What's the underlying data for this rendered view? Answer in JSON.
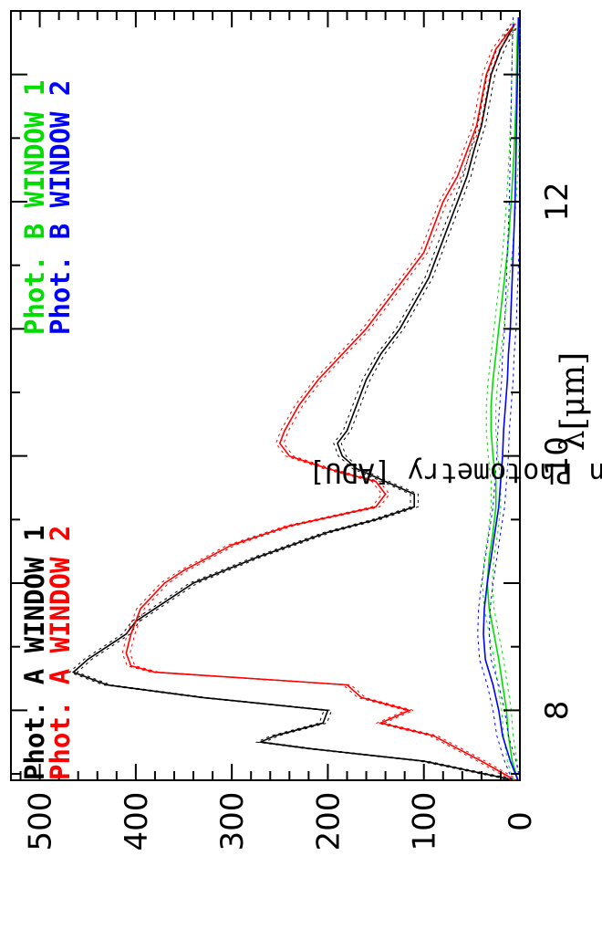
{
  "chart_data": {
    "type": "line",
    "xlabel": "λ[μm]",
    "ylabel": "Mean Photometry [ADU]",
    "xlim": [
      7.45,
      13.5
    ],
    "ylim": [
      0,
      530
    ],
    "x_ticks": [
      8,
      10,
      12
    ],
    "y_ticks": [
      0,
      100,
      200,
      300,
      400,
      500
    ],
    "grid": false,
    "legend_position": "top",
    "legend": [
      {
        "prefix": "Phot. A",
        "window": "WINDOW 1",
        "color": "#000000"
      },
      {
        "prefix": "Phot. A",
        "window": "WINDOW 2",
        "color": "#ff0000"
      },
      {
        "prefix": "Phot. B",
        "window": "WINDOW 1",
        "color": "#00dd00"
      },
      {
        "prefix": "Phot. B",
        "window": "WINDOW 2",
        "color": "#0000ff"
      }
    ],
    "series": [
      {
        "color": "#000000",
        "error_band": 4,
        "x": [
          7.45,
          7.6,
          7.7,
          7.75,
          7.8,
          7.9,
          8.0,
          8.1,
          8.2,
          8.3,
          8.4,
          8.5,
          8.6,
          8.7,
          8.8,
          9.0,
          9.2,
          9.4,
          9.5,
          9.6,
          9.7,
          9.8,
          9.9,
          10.0,
          10.1,
          10.2,
          10.4,
          10.6,
          10.8,
          11.0,
          11.2,
          11.4,
          11.6,
          11.8,
          12.0,
          12.2,
          12.4,
          12.6,
          12.8,
          13.0,
          13.2,
          13.4
        ],
        "y": [
          5,
          100,
          220,
          270,
          255,
          205,
          200,
          330,
          430,
          465,
          450,
          430,
          410,
          400,
          380,
          340,
          275,
          200,
          150,
          110,
          110,
          140,
          170,
          185,
          190,
          180,
          170,
          160,
          145,
          125,
          110,
          95,
          85,
          75,
          65,
          55,
          48,
          40,
          35,
          30,
          20,
          5
        ]
      },
      {
        "color": "#ff0000",
        "error_band": 4,
        "x": [
          7.45,
          7.6,
          7.8,
          7.9,
          8.0,
          8.1,
          8.2,
          8.25,
          8.3,
          8.35,
          8.45,
          8.6,
          8.8,
          9.0,
          9.1,
          9.3,
          9.45,
          9.6,
          9.7,
          9.8,
          9.9,
          10.0,
          10.1,
          10.2,
          10.4,
          10.6,
          10.8,
          11.0,
          11.2,
          11.4,
          11.6,
          11.8,
          12.0,
          12.2,
          12.4,
          12.6,
          12.8,
          13.0,
          13.2,
          13.4
        ],
        "y": [
          5,
          40,
          90,
          145,
          115,
          165,
          180,
          280,
          380,
          405,
          410,
          405,
          395,
          370,
          350,
          300,
          240,
          150,
          140,
          150,
          200,
          240,
          250,
          245,
          230,
          210,
          185,
          160,
          140,
          120,
          100,
          90,
          80,
          65,
          55,
          45,
          40,
          35,
          25,
          5
        ]
      },
      {
        "color": "#00dd00",
        "error_band": 5,
        "x": [
          7.45,
          7.6,
          7.8,
          8.0,
          8.2,
          8.4,
          8.6,
          8.8,
          9.0,
          9.2,
          9.4,
          9.6,
          9.8,
          10.0,
          10.2,
          10.4,
          10.6,
          10.8,
          11.0,
          11.2,
          11.4,
          11.6,
          11.8,
          12.0,
          12.4,
          12.8,
          13.2,
          13.45
        ],
        "y": [
          2,
          8,
          12,
          14,
          18,
          22,
          27,
          32,
          34,
          32,
          28,
          25,
          25,
          28,
          30,
          30,
          28,
          25,
          22,
          19,
          16,
          13,
          11,
          9,
          6,
          4,
          3,
          2
        ]
      },
      {
        "color": "#0000ff",
        "error_band": 6,
        "x": [
          7.45,
          7.6,
          7.8,
          8.0,
          8.2,
          8.4,
          8.6,
          8.8,
          9.0,
          9.2,
          9.4,
          9.6,
          9.8,
          10.0,
          10.2,
          10.4,
          10.6,
          10.8,
          11.0,
          11.2,
          11.4,
          11.6,
          11.8,
          12.0,
          12.4,
          12.8,
          13.2,
          13.45
        ],
        "y": [
          2,
          10,
          18,
          22,
          28,
          36,
          38,
          37,
          34,
          30,
          26,
          22,
          20,
          18,
          17,
          15,
          13,
          12,
          10,
          9,
          8,
          7,
          6,
          5,
          4,
          3,
          2,
          1
        ]
      }
    ]
  }
}
